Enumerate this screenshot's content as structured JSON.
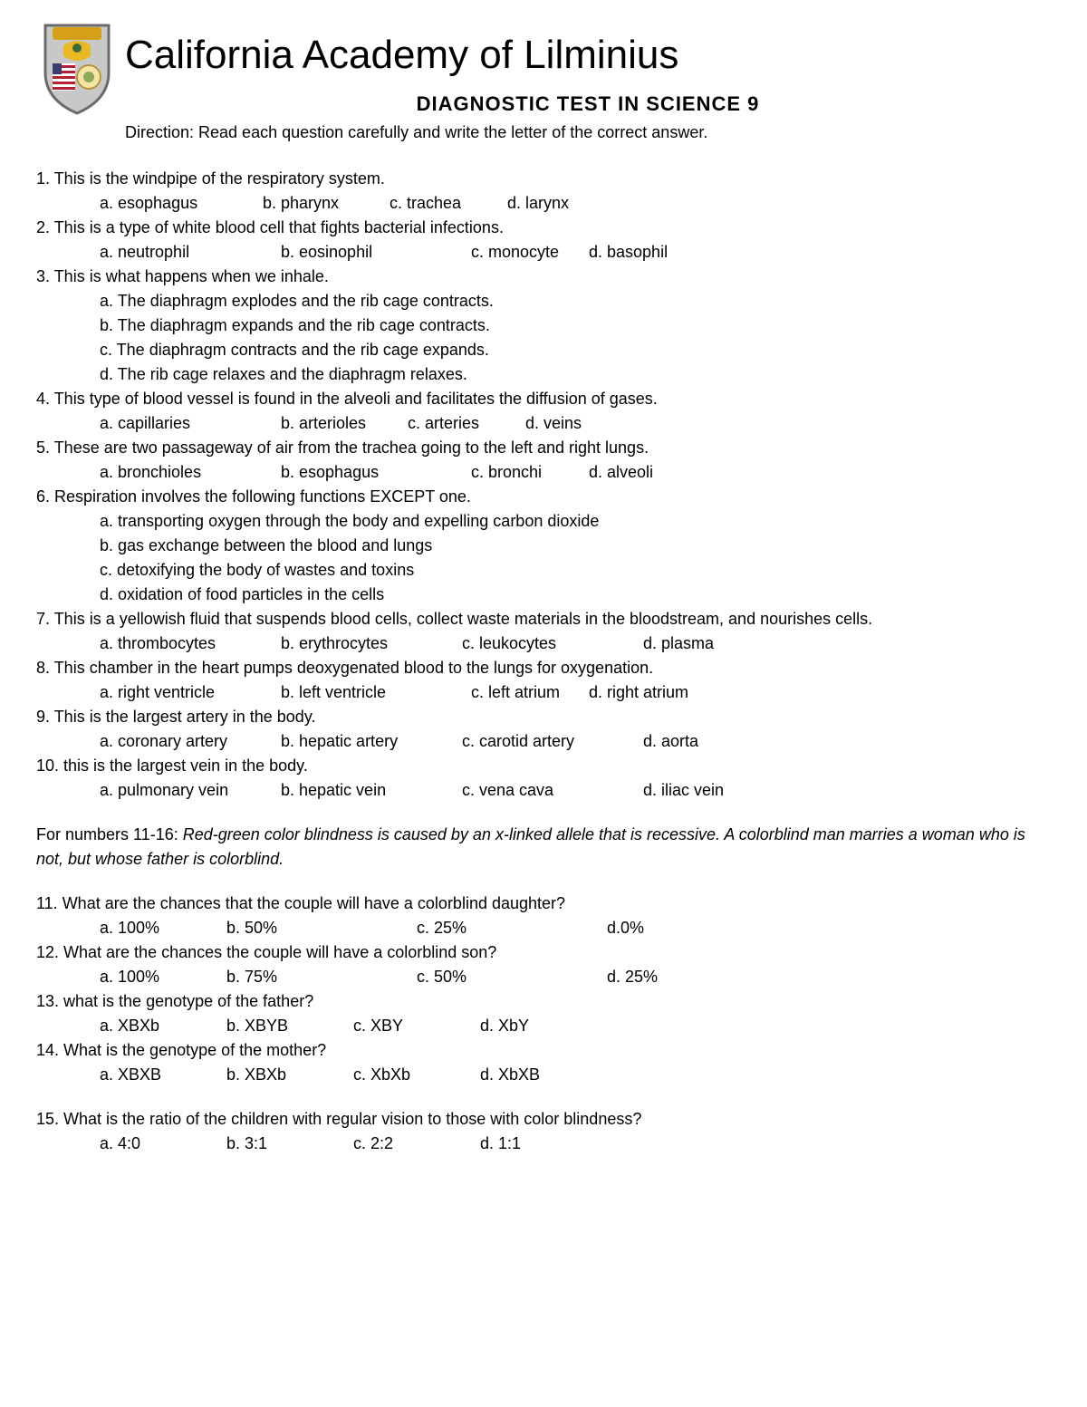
{
  "header": {
    "school_name": "California Academy of Lilminius",
    "test_title": "DIAGNOSTIC TEST IN SCIENCE 9",
    "direction": "Direction: Read each question carefully and write the letter of the correct answer."
  },
  "logo": {
    "shield_border": "#6b6b6b",
    "shield_inner": "#d0d0d0",
    "banner_color": "#d4a017",
    "eagle_color": "#e8b923",
    "flag_stripe": "#b22234",
    "flag_blue": "#3c3b6e",
    "circle_color": "#5b8a3a"
  },
  "questions": [
    {
      "num": "1.",
      "text": "This is the windpipe of the respiratory system.",
      "style": "inline",
      "widths": [
        180,
        140,
        130,
        130
      ],
      "choices": [
        "a. esophagus",
        "b. pharynx",
        "c. trachea",
        "d. larynx"
      ]
    },
    {
      "num": "2.",
      "text": "This is a type of white blood cell that fights bacterial infections.",
      "style": "inline",
      "widths": [
        200,
        210,
        130,
        130
      ],
      "choices": [
        "a. neutrophil",
        "b. eosinophil",
        "c. monocyte",
        "d. basophil"
      ]
    },
    {
      "num": "3.",
      "text": "This is what happens when we inhale.",
      "style": "block",
      "choices": [
        "a. The diaphragm explodes and the rib cage contracts.",
        "b. The diaphragm expands and the rib cage contracts.",
        "c. The diaphragm contracts and the rib cage expands.",
        "d. The rib cage relaxes and the diaphragm relaxes."
      ]
    },
    {
      "num": "4.",
      "text": "This type of blood vessel is found in the alveoli and facilitates the diffusion of gases.",
      "style": "inline",
      "widths": [
        200,
        140,
        130,
        130
      ],
      "choices": [
        "a. capillaries",
        "b. arterioles",
        "c. arteries",
        "d. veins"
      ]
    },
    {
      "num": "5.",
      "text": "These are two passageway of air from the trachea going to the left and right lungs.",
      "style": "inline",
      "widths": [
        200,
        210,
        130,
        130
      ],
      "choices": [
        "a. bronchioles",
        "b. esophagus",
        "c. bronchi",
        "d. alveoli"
      ]
    },
    {
      "num": "6.",
      "text": "Respiration involves the following functions EXCEPT one.",
      "style": "block",
      "choices": [
        "a. transporting oxygen through the body and expelling carbon dioxide",
        "b. gas exchange between the blood and lungs",
        "c. detoxifying the body of wastes and toxins",
        "d. oxidation of food particles in the cells"
      ]
    },
    {
      "num": "7.",
      "text": "This is a yellowish fluid that suspends blood cells, collect waste materials in the bloodstream, and nourishes cells.",
      "style": "inline",
      "widths": [
        200,
        200,
        200,
        130
      ],
      "choices": [
        "a. thrombocytes",
        "b. erythrocytes",
        "c. leukocytes",
        "d. plasma"
      ]
    },
    {
      "num": "8.",
      "text": "This chamber in the heart pumps deoxygenated blood to the lungs for oxygenation.",
      "style": "inline",
      "widths": [
        200,
        210,
        130,
        150
      ],
      "choices": [
        "a. right ventricle",
        "b. left ventricle",
        "c. left atrium",
        "d. right atrium"
      ]
    },
    {
      "num": "9.",
      "text": "This is the largest artery in the body.",
      "style": "inline",
      "widths": [
        200,
        200,
        200,
        130
      ],
      "choices": [
        "a. coronary artery",
        "b. hepatic artery",
        "c. carotid artery",
        "d. aorta"
      ]
    },
    {
      "num": "10.",
      "text": "this is the largest vein in the body.",
      "style": "inline",
      "widths": [
        200,
        200,
        200,
        130
      ],
      "choices": [
        "a. pulmonary vein",
        "b. hepatic vein",
        "c. vena cava",
        "d. iliac vein"
      ]
    }
  ],
  "scenario": {
    "prefix": "For numbers 11-16: ",
    "text": "Red-green color blindness is caused by an x-linked allele that is recessive. A colorblind man marries a woman who is not, but whose father is colorblind."
  },
  "questions2": [
    {
      "num": "11.",
      "text": "What are the chances that the couple will have a colorblind daughter?",
      "style": "inline",
      "widths": [
        140,
        210,
        210,
        130
      ],
      "choices": [
        "a. 100%",
        "b. 50%",
        "c. 25%",
        "d.0%"
      ]
    },
    {
      "num": "12.",
      "text": " What are the chances the couple will have a colorblind son?",
      "style": "inline",
      "widths": [
        140,
        210,
        210,
        130
      ],
      "choices": [
        "a. 100%",
        "b. 75%",
        "c. 50%",
        "d. 25%"
      ]
    },
    {
      "num": "13.",
      "text": "what is the genotype of the father?",
      "style": "inline",
      "widths": [
        140,
        140,
        140,
        130
      ],
      "choices": [
        "a. XBXb",
        "b. XBYB",
        "c. XBY",
        "d. XbY"
      ]
    },
    {
      "num": "14.",
      "text": "What is the genotype of the mother?",
      "style": "inline",
      "widths": [
        140,
        140,
        140,
        130
      ],
      "choices": [
        "a. XBXB",
        "b. XBXb",
        "c. XbXb",
        "d. XbXB"
      ]
    }
  ],
  "question15": {
    "num": "15.",
    "text": "What is the ratio of the children with regular vision to those with color blindness?",
    "style": "inline",
    "widths": [
      140,
      140,
      140,
      130
    ],
    "choices": [
      "a. 4:0",
      "b. 3:1",
      "c. 2:2",
      "d. 1:1"
    ]
  }
}
